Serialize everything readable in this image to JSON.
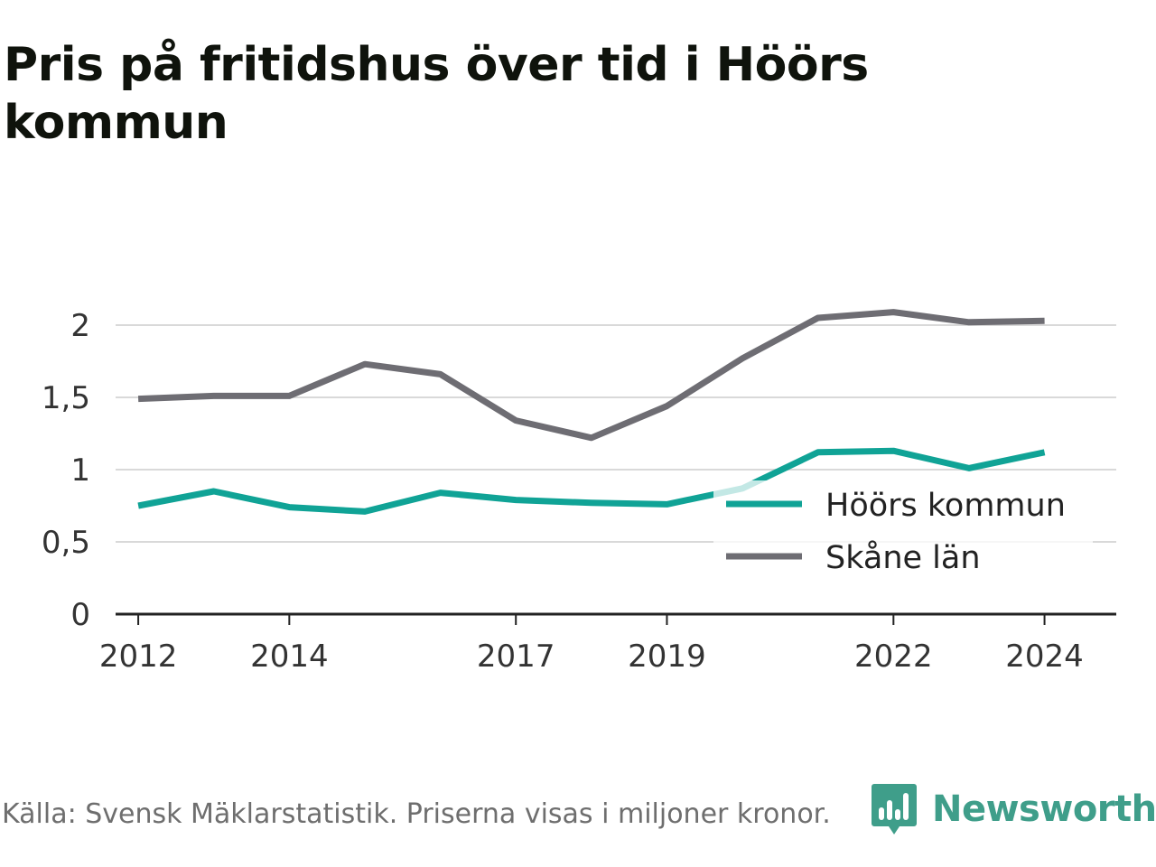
{
  "title": "Pris på fritidshus över tid i Höörs kommun",
  "source": "Källa: Svensk Mäklarstatistik. Priserna visas i miljoner kronor.",
  "brand": {
    "name": "Newsworthy",
    "icon": "newsworthy-logo-icon",
    "color": "#3f9e8a"
  },
  "chart_data": {
    "type": "line",
    "title": "Pris på fritidshus över tid i Höörs kommun",
    "xlabel": "",
    "ylabel": "",
    "x": [
      2012,
      2013,
      2014,
      2015,
      2016,
      2017,
      2018,
      2019,
      2020,
      2021,
      2022,
      2023,
      2024
    ],
    "xticks": [
      "2012",
      "2014",
      "2017",
      "2019",
      "2022",
      "2024"
    ],
    "yticks": [
      "0",
      "0,5",
      "1",
      "1,5",
      "2"
    ],
    "ylim": [
      0,
      2.2
    ],
    "grid": "horizontal",
    "legend_position": "bottom-right",
    "series": [
      {
        "name": "Höörs kommun",
        "color": "#10a396",
        "values": [
          0.75,
          0.85,
          0.74,
          0.71,
          0.84,
          0.79,
          0.77,
          0.76,
          0.87,
          1.12,
          1.13,
          1.01,
          1.12
        ]
      },
      {
        "name": "Skåne län",
        "color": "#6e6d73",
        "values": [
          1.49,
          1.51,
          1.51,
          1.73,
          1.66,
          1.34,
          1.22,
          1.44,
          1.77,
          2.05,
          2.09,
          2.02,
          2.03
        ]
      }
    ]
  }
}
